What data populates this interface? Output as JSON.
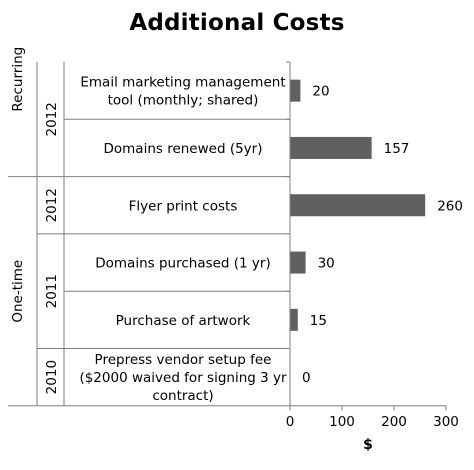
{
  "chart_data": {
    "type": "bar",
    "orientation": "horizontal",
    "title": "Additional Costs",
    "xlabel": "$",
    "ylabel": "",
    "xlim": [
      0,
      300
    ],
    "xticks": [
      0,
      100,
      200,
      300
    ],
    "grid": false,
    "legend": "none",
    "bar_color": "#606060",
    "groups": [
      {
        "name": "Recurring",
        "subgroups": [
          {
            "name": "2012",
            "categories": [
              {
                "label": [
                  "Email marketing management",
                  "tool (monthly; shared)"
                ],
                "value": 20
              },
              {
                "label": [
                  "Domains renewed (5yr)"
                ],
                "value": 157
              }
            ]
          }
        ]
      },
      {
        "name": "One-time",
        "subgroups": [
          {
            "name": "2012",
            "categories": [
              {
                "label": [
                  "Flyer print costs"
                ],
                "value": 260
              }
            ]
          },
          {
            "name": "2011",
            "categories": [
              {
                "label": [
                  "Domains purchased (1 yr)"
                ],
                "value": 30
              },
              {
                "label": [
                  "Purchase of artwork"
                ],
                "value": 15
              }
            ]
          },
          {
            "name": "2010",
            "categories": [
              {
                "label": [
                  "Prepress vendor setup fee",
                  "($2000 waived for signing 3 yr",
                  "contract)"
                ],
                "value": 0
              }
            ]
          }
        ]
      }
    ]
  }
}
